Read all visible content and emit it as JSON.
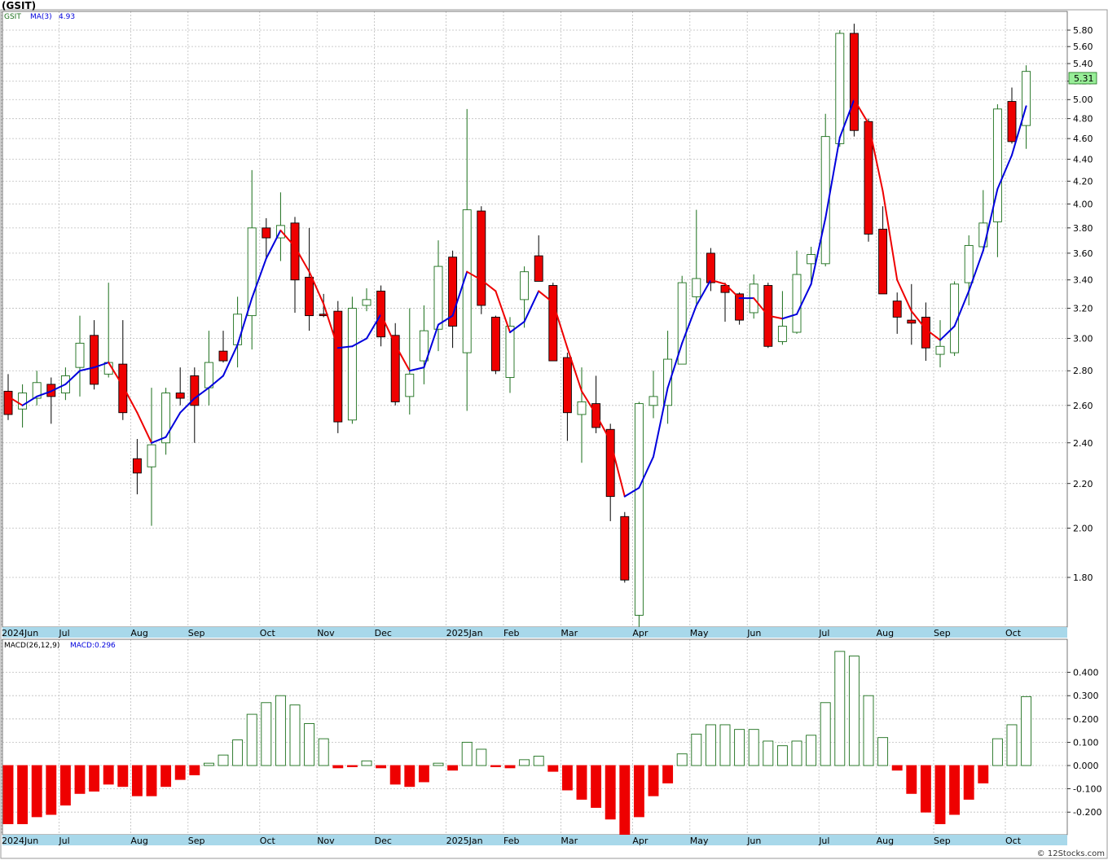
{
  "header": {
    "title": "(GSIT)"
  },
  "legend": {
    "symbol": "GSIT",
    "ma_label": "MA(3)",
    "ma_value": "4.93",
    "macd_label": "MACD(26,12,9)",
    "macd_value": "MACD:0.296"
  },
  "last_price_label": "5.31",
  "footer": {
    "credit": "© 12Stocks.com"
  },
  "colors": {
    "up": "#1a6e1a",
    "down": "#ee0000",
    "ma_up": "#0000dd",
    "ma_down": "#ee0000",
    "axis_band": "#a8d8ea",
    "grid": "#bdbdbd",
    "price_box": "#98ee98"
  },
  "chart_data": [
    {
      "type": "candlestick",
      "title": "(GSIT)",
      "scale": "log",
      "ylim": [
        1.6,
        5.95
      ],
      "y_ticks": [
        1.8,
        2.0,
        2.2,
        2.4,
        2.6,
        2.8,
        3.0,
        3.2,
        3.4,
        3.6,
        3.8,
        4.0,
        4.2,
        4.4,
        4.6,
        4.8,
        5.0,
        5.2,
        5.4,
        5.6,
        5.8
      ],
      "x_ticks": [
        "2024Jun",
        "Jul",
        "Aug",
        "Sep",
        "Oct",
        "Nov",
        "Dec",
        "2025Jan",
        "Feb",
        "Mar",
        "Apr",
        "May",
        "Jun",
        "Jul",
        "Aug",
        "Sep",
        "Oct"
      ],
      "x_tick_weeks": [
        0,
        4,
        9,
        13,
        18,
        22,
        26,
        31,
        35,
        39,
        44,
        48,
        52,
        57,
        61,
        65,
        70
      ],
      "grid": true,
      "series": [
        {
          "name": "GSIT",
          "weekly_ohlc": [
            [
              2.68,
              2.78,
              2.52,
              2.55
            ],
            [
              2.58,
              2.72,
              2.48,
              2.67
            ],
            [
              2.64,
              2.8,
              2.6,
              2.73
            ],
            [
              2.72,
              2.76,
              2.5,
              2.65
            ],
            [
              2.67,
              2.82,
              2.63,
              2.77
            ],
            [
              2.82,
              3.15,
              2.65,
              2.97
            ],
            [
              3.02,
              3.12,
              2.69,
              2.72
            ],
            [
              2.78,
              3.38,
              2.76,
              2.85
            ],
            [
              2.84,
              3.12,
              2.52,
              2.56
            ],
            [
              2.32,
              2.42,
              2.15,
              2.25
            ],
            [
              2.28,
              2.7,
              2.01,
              2.39
            ],
            [
              2.4,
              2.7,
              2.34,
              2.67
            ],
            [
              2.67,
              2.82,
              2.6,
              2.64
            ],
            [
              2.77,
              2.82,
              2.4,
              2.6
            ],
            [
              2.7,
              3.05,
              2.6,
              2.85
            ],
            [
              2.92,
              3.05,
              2.85,
              2.86
            ],
            [
              2.96,
              3.28,
              2.82,
              3.16
            ],
            [
              3.15,
              4.3,
              2.93,
              3.8
            ],
            [
              3.8,
              3.88,
              3.56,
              3.72
            ],
            [
              3.72,
              4.1,
              3.54,
              3.82
            ],
            [
              3.84,
              3.89,
              3.17,
              3.4
            ],
            [
              3.42,
              3.8,
              3.05,
              3.15
            ],
            [
              3.16,
              3.3,
              3.14,
              3.15
            ],
            [
              3.18,
              3.25,
              2.45,
              2.51
            ],
            [
              2.52,
              3.28,
              2.5,
              3.2
            ],
            [
              3.22,
              3.34,
              3.18,
              3.26
            ],
            [
              3.32,
              3.36,
              2.95,
              3.01
            ],
            [
              3.02,
              3.1,
              2.6,
              2.62
            ],
            [
              2.65,
              3.2,
              2.55,
              2.78
            ],
            [
              2.86,
              3.22,
              2.72,
              3.05
            ],
            [
              3.06,
              3.7,
              2.92,
              3.5
            ],
            [
              3.57,
              3.62,
              2.94,
              3.08
            ],
            [
              2.91,
              4.9,
              2.57,
              3.95
            ],
            [
              3.94,
              3.98,
              3.16,
              3.22
            ],
            [
              3.14,
              3.15,
              2.78,
              2.8
            ],
            [
              2.76,
              3.14,
              2.67,
              3.08
            ],
            [
              3.26,
              3.5,
              3.07,
              3.46
            ],
            [
              3.58,
              3.74,
              3.4,
              3.39
            ],
            [
              3.36,
              3.38,
              2.86,
              2.86
            ],
            [
              2.88,
              2.91,
              2.41,
              2.56
            ],
            [
              2.55,
              2.82,
              2.3,
              2.62
            ],
            [
              2.61,
              2.77,
              2.45,
              2.48
            ],
            [
              2.47,
              2.5,
              2.03,
              2.14
            ],
            [
              2.05,
              2.07,
              1.78,
              1.79
            ],
            [
              1.66,
              2.62,
              1.62,
              2.61
            ],
            [
              2.6,
              2.8,
              2.53,
              2.65
            ],
            [
              2.6,
              3.05,
              2.5,
              2.87
            ],
            [
              2.84,
              3.43,
              2.84,
              3.38
            ],
            [
              3.28,
              3.95,
              3.23,
              3.41
            ],
            [
              3.6,
              3.64,
              3.32,
              3.38
            ],
            [
              3.36,
              3.38,
              3.11,
              3.31
            ],
            [
              3.3,
              3.31,
              3.09,
              3.12
            ],
            [
              3.17,
              3.44,
              3.13,
              3.37
            ],
            [
              3.36,
              3.38,
              2.94,
              2.95
            ],
            [
              2.98,
              3.32,
              2.96,
              3.08
            ],
            [
              3.04,
              3.62,
              3.03,
              3.44
            ],
            [
              3.52,
              3.65,
              3.36,
              3.59
            ],
            [
              3.52,
              4.85,
              3.5,
              4.62
            ],
            [
              4.55,
              5.8,
              4.52,
              5.76
            ],
            [
              5.76,
              5.88,
              4.62,
              4.68
            ],
            [
              4.77,
              4.8,
              3.69,
              3.75
            ],
            [
              3.79,
              3.98,
              3.3,
              3.3
            ],
            [
              3.25,
              3.31,
              3.03,
              3.14
            ],
            [
              3.12,
              3.37,
              2.96,
              3.1
            ],
            [
              3.14,
              3.24,
              2.86,
              2.94
            ],
            [
              2.9,
              3.12,
              2.82,
              2.95
            ],
            [
              2.91,
              3.39,
              2.89,
              3.37
            ],
            [
              3.38,
              3.74,
              3.22,
              3.66
            ],
            [
              3.65,
              4.12,
              3.64,
              3.84
            ],
            [
              3.85,
              4.95,
              3.57,
              4.9
            ],
            [
              4.98,
              5.13,
              4.55,
              4.57
            ],
            [
              4.73,
              5.38,
              4.5,
              5.31
            ]
          ]
        },
        {
          "name": "MA(3)",
          "values": [
            2.65,
            2.6,
            2.65,
            2.68,
            2.72,
            2.8,
            2.82,
            2.85,
            2.71,
            2.56,
            2.4,
            2.43,
            2.56,
            2.64,
            2.7,
            2.77,
            2.96,
            3.27,
            3.56,
            3.78,
            3.65,
            3.46,
            3.23,
            2.94,
            2.95,
            3.0,
            3.16,
            2.96,
            2.8,
            2.82,
            3.09,
            3.15,
            3.46,
            3.4,
            3.32,
            3.04,
            3.11,
            3.32,
            3.24,
            2.94,
            2.68,
            2.55,
            2.41,
            2.14,
            2.18,
            2.33,
            2.7,
            2.97,
            3.22,
            3.4,
            3.37,
            3.27,
            3.27,
            3.15,
            3.13,
            3.16,
            3.37,
            3.88,
            4.61,
            5.0,
            4.75,
            4.11,
            3.4,
            3.18,
            3.06,
            2.99,
            3.08,
            3.32,
            3.62,
            4.13,
            4.44,
            4.93
          ],
          "color_segments_up": "#0000dd",
          "color_segments_down": "#ee0000"
        }
      ],
      "annotations": [
        "5.31"
      ]
    },
    {
      "type": "bar",
      "title": "MACD(26,12,9)",
      "ylim": [
        -0.3,
        0.5
      ],
      "y_ticks": [
        -0.2,
        -0.1,
        0.0,
        0.1,
        0.2,
        0.3,
        0.4
      ],
      "y_tick_labels": [
        "-0.200",
        "-0.100",
        "0.000",
        "0.100",
        "0.200",
        "0.300",
        "0.400"
      ],
      "x_ticks": [
        "2024Jun",
        "Jul",
        "Aug",
        "Sep",
        "Oct",
        "Nov",
        "Dec",
        "2025Jan",
        "Feb",
        "Mar",
        "Apr",
        "May",
        "Jun",
        "Jul",
        "Aug",
        "Sep",
        "Oct"
      ],
      "series": [
        {
          "name": "MACD",
          "values": [
            -0.25,
            -0.25,
            -0.22,
            -0.21,
            -0.17,
            -0.12,
            -0.11,
            -0.08,
            -0.09,
            -0.13,
            -0.13,
            -0.09,
            -0.06,
            -0.04,
            0.01,
            0.045,
            0.11,
            0.22,
            0.27,
            0.3,
            0.26,
            0.18,
            0.115,
            -0.01,
            -0.005,
            0.02,
            -0.01,
            -0.08,
            -0.09,
            -0.07,
            0.01,
            -0.02,
            0.1,
            0.07,
            -0.005,
            -0.01,
            0.025,
            0.04,
            -0.025,
            -0.105,
            -0.145,
            -0.18,
            -0.23,
            -0.3,
            -0.22,
            -0.13,
            -0.075,
            0.05,
            0.135,
            0.175,
            0.175,
            0.155,
            0.155,
            0.105,
            0.085,
            0.105,
            0.13,
            0.27,
            0.49,
            0.47,
            0.3,
            0.12,
            -0.02,
            -0.12,
            -0.2,
            -0.25,
            -0.21,
            -0.145,
            -0.075,
            0.115,
            0.175,
            0.296
          ]
        }
      ]
    }
  ]
}
